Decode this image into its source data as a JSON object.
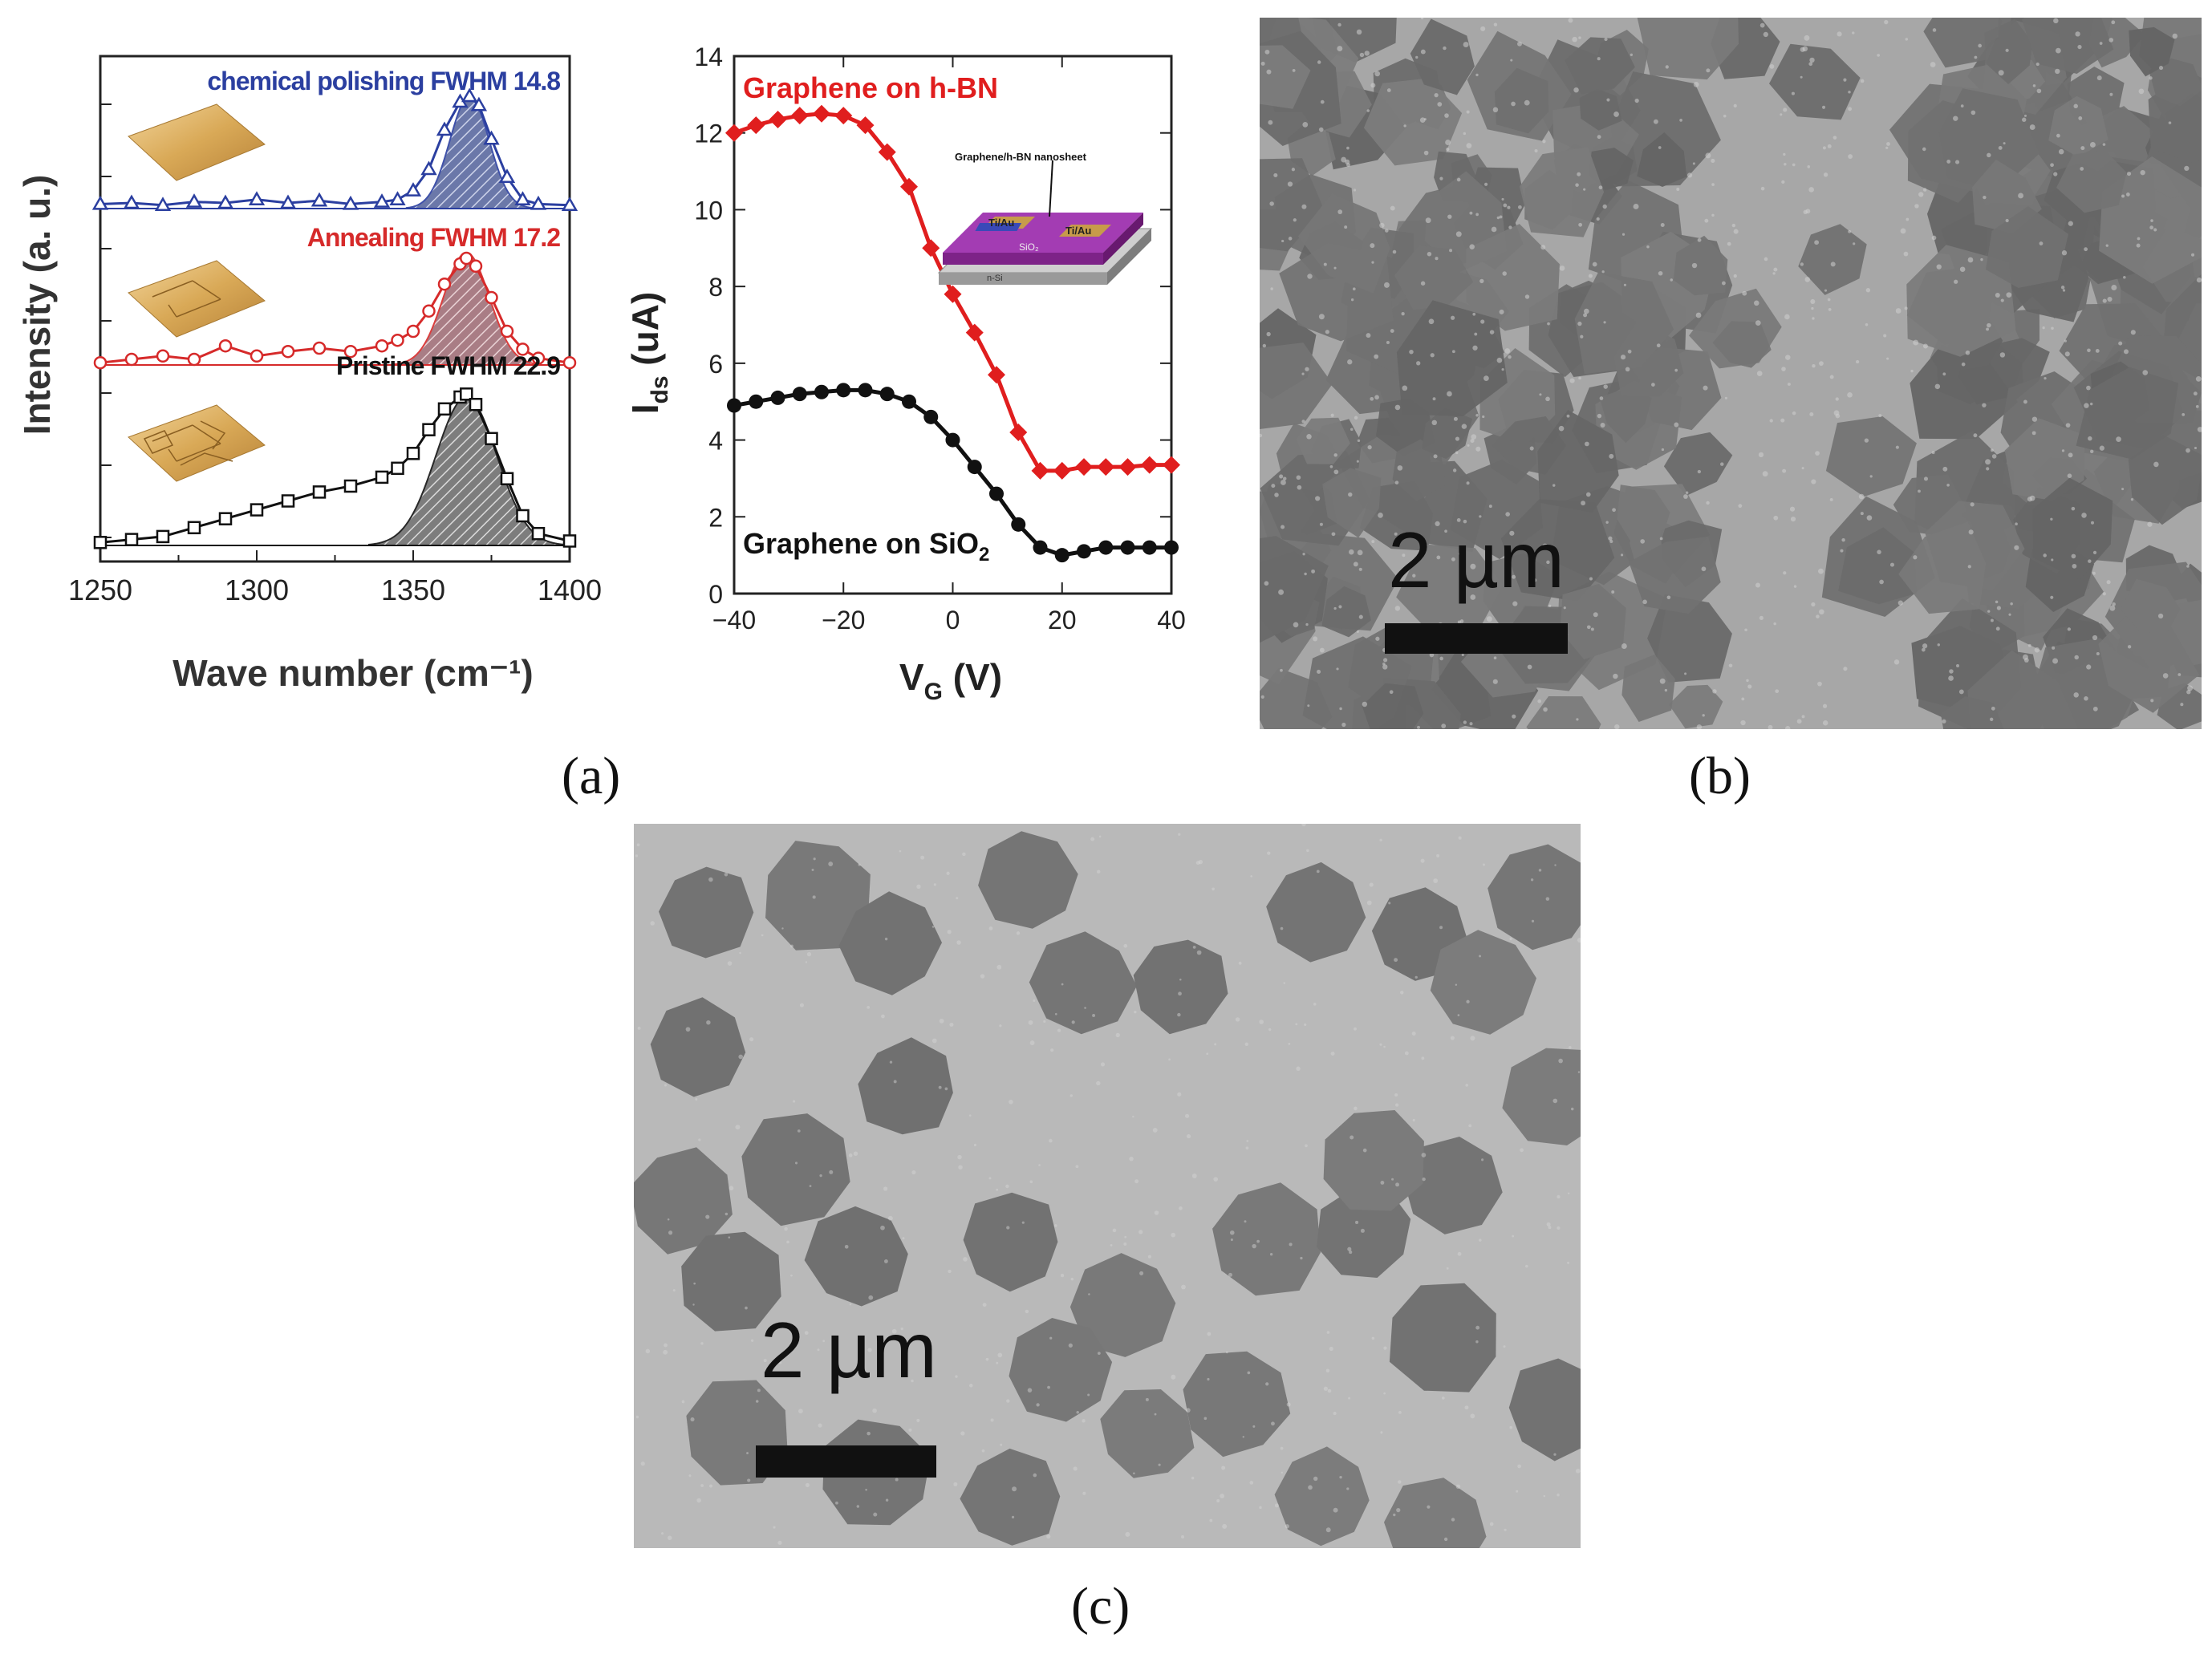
{
  "panels": {
    "a_label": "(a)",
    "b_label": "(b)",
    "c_label": "(c)"
  },
  "chart_data": [
    {
      "type": "line",
      "xlabel": "Wave number (cm⁻¹)",
      "ylabel": "Intensity (a. u.)",
      "xlim": [
        1250,
        1400
      ],
      "x_ticks": [
        "1250",
        "1300",
        "1350",
        "1400"
      ],
      "grid": false,
      "series": [
        {
          "name": "chemical polishing",
          "annotation": "chemical polishing  FWHM 14.8",
          "fwhm": 14.8,
          "color": "#2b3fa0",
          "peak_center": 1368,
          "x": [
            1250,
            1260,
            1270,
            1280,
            1290,
            1300,
            1310,
            1320,
            1330,
            1340,
            1345,
            1350,
            1355,
            1360,
            1365,
            1368,
            1371,
            1375,
            1380,
            1385,
            1390,
            1400
          ],
          "y": [
            0.04,
            0.05,
            0.03,
            0.06,
            0.05,
            0.08,
            0.05,
            0.07,
            0.04,
            0.06,
            0.08,
            0.16,
            0.35,
            0.7,
            0.95,
            1.0,
            0.92,
            0.62,
            0.28,
            0.08,
            0.04,
            0.03
          ]
        },
        {
          "name": "Annealing",
          "annotation": "Annealing  FWHM 17.2",
          "fwhm": 17.2,
          "color": "#d62a2a",
          "peak_center": 1367,
          "x": [
            1250,
            1260,
            1270,
            1280,
            1290,
            1300,
            1310,
            1320,
            1330,
            1340,
            1345,
            1350,
            1355,
            1360,
            1365,
            1367,
            1370,
            1375,
            1380,
            1385,
            1390,
            1400
          ],
          "y": [
            0.02,
            0.05,
            0.08,
            0.05,
            0.17,
            0.08,
            0.12,
            0.15,
            0.12,
            0.17,
            0.22,
            0.3,
            0.48,
            0.72,
            0.9,
            0.95,
            0.88,
            0.6,
            0.3,
            0.14,
            0.06,
            0.02
          ]
        },
        {
          "name": "Pristine",
          "annotation": "Pristine  FWHM 22.9",
          "fwhm": 22.9,
          "color": "#111111",
          "peak_center": 1367,
          "x": [
            1250,
            1260,
            1270,
            1280,
            1290,
            1300,
            1310,
            1320,
            1330,
            1340,
            1345,
            1350,
            1355,
            1360,
            1365,
            1367,
            1370,
            1375,
            1380,
            1385,
            1390,
            1400
          ],
          "y": [
            0.02,
            0.04,
            0.06,
            0.12,
            0.18,
            0.24,
            0.3,
            0.36,
            0.4,
            0.46,
            0.52,
            0.62,
            0.78,
            0.92,
            1.0,
            1.02,
            0.95,
            0.72,
            0.45,
            0.2,
            0.08,
            0.03
          ]
        }
      ]
    },
    {
      "type": "line",
      "xlabel": "V",
      "xlabel_sub": "G",
      "xlabel_unit": " (V)",
      "ylabel": "I",
      "ylabel_sub": "ds",
      "ylabel_unit": " (uA)",
      "xlim": [
        -40,
        40
      ],
      "ylim": [
        0,
        14
      ],
      "x_ticks": [
        "−40",
        "−20",
        "0",
        "20",
        "40"
      ],
      "y_ticks": [
        "0",
        "2",
        "4",
        "6",
        "8",
        "10",
        "12",
        "14"
      ],
      "grid": false,
      "inset_title": "Graphene/h-BN nanosheet",
      "inset_labels": [
        "Ti/Au",
        "Ti/Au",
        "SiO₂",
        "n-Si"
      ],
      "series": [
        {
          "name": "Graphene on h-BN",
          "color": "#e01e1e",
          "marker": "diamond",
          "x": [
            -40,
            -36,
            -32,
            -28,
            -24,
            -20,
            -16,
            -12,
            -8,
            -4,
            0,
            4,
            8,
            12,
            16,
            20,
            24,
            28,
            32,
            36,
            40
          ],
          "y": [
            12.0,
            12.2,
            12.35,
            12.45,
            12.5,
            12.45,
            12.2,
            11.5,
            10.6,
            9.0,
            7.8,
            6.8,
            5.7,
            4.2,
            3.2,
            3.2,
            3.3,
            3.3,
            3.3,
            3.35,
            3.35
          ]
        },
        {
          "name": "Graphene on SiO",
          "name_sub": "2",
          "color": "#111111",
          "marker": "circle",
          "x": [
            -40,
            -36,
            -32,
            -28,
            -24,
            -20,
            -16,
            -12,
            -8,
            -4,
            0,
            4,
            8,
            12,
            16,
            20,
            24,
            28,
            32,
            36,
            40
          ],
          "y": [
            4.9,
            5.0,
            5.1,
            5.2,
            5.25,
            5.3,
            5.3,
            5.2,
            5.0,
            4.6,
            4.0,
            3.3,
            2.6,
            1.8,
            1.2,
            1.0,
            1.1,
            1.2,
            1.2,
            1.2,
            1.2
          ]
        }
      ]
    }
  ],
  "sem_b": {
    "scalebar_text": "2 µm"
  },
  "sem_c": {
    "scalebar_text": "2 µm"
  }
}
